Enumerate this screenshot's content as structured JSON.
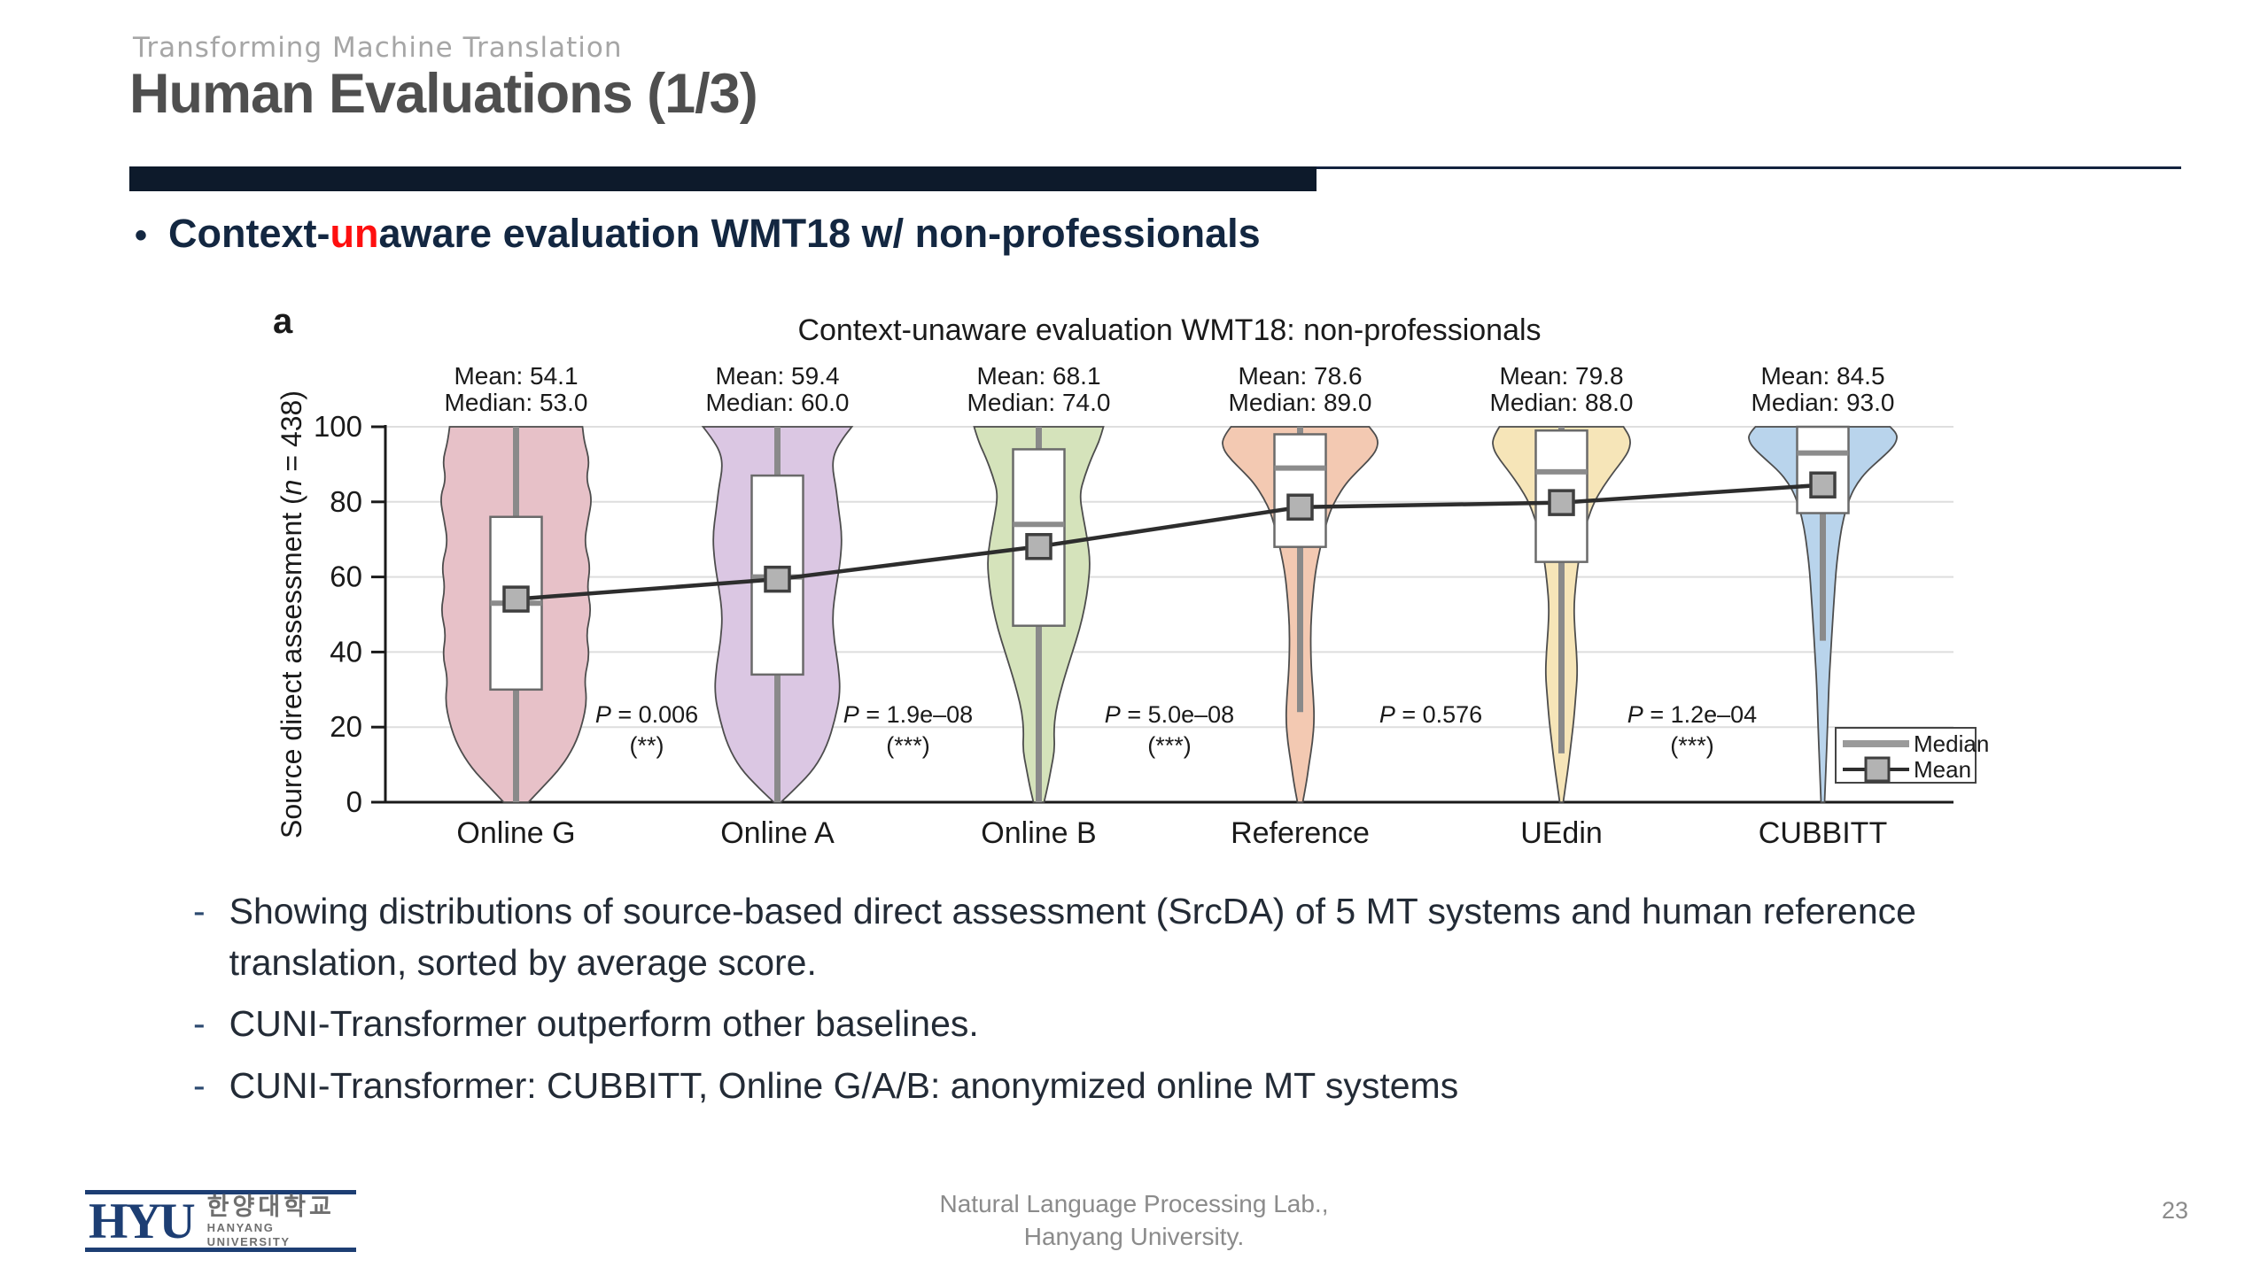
{
  "slide": {
    "kicker": "Transforming Machine Translation",
    "title": "Human Evaluations (1/3)",
    "accent_bar_color": "#0d1a2b",
    "bullet_glyph": "•",
    "dash_glyph": "-",
    "bullet": {
      "prefix": "Context-",
      "highlight": "un",
      "suffix": "aware evaluation WMT18 w/ non-professionals",
      "highlight_color": "#fe0f0f"
    },
    "sub_bullets": [
      "Showing distributions of source-based direct assessment (SrcDA) of 5 MT systems and human reference translation, sorted by average score.",
      "CUNI-Transformer outperform other baselines.",
      "CUNI-Transformer: CUBBITT, Online G/A/B: anonymized online MT systems"
    ],
    "footer": {
      "org_line1": "Natural Language Processing Lab.,",
      "org_line2": "Hanyang University.",
      "page_number": "23"
    },
    "logo": {
      "acronym": "HYU",
      "korean_name": "한양대학교",
      "english_name": "HANYANG UNIVERSITY",
      "color": "#1d3e73"
    }
  },
  "chart_data": {
    "type": "violin",
    "panel_label": "a",
    "title": "Context-unaware evaluation WMT18: non-professionals",
    "ylabel_prefix": "Source direct assessment (",
    "ylabel_italic": "n",
    "ylabel_suffix": " = 438)",
    "ylim": [
      0,
      100
    ],
    "yticks": [
      0,
      20,
      40,
      60,
      80,
      100
    ],
    "grid": true,
    "legend": {
      "median_label": "Median",
      "mean_label": "Mean",
      "position": "bottom-right"
    },
    "categories": [
      "Online G",
      "Online A",
      "Online B",
      "Reference",
      "UEdin",
      "CUBBITT"
    ],
    "series": [
      {
        "name": "Online G",
        "mean": 54.1,
        "median": 53.0,
        "mean_label": "Mean: 54.1",
        "median_label": "Median: 53.0",
        "q1": 30,
        "q3": 76,
        "whisker_low": 0,
        "whisker_high": 100,
        "fill": "#e7c1c8",
        "profile": [
          [
            0,
            14
          ],
          [
            4,
            30
          ],
          [
            9,
            50
          ],
          [
            15,
            66
          ],
          [
            21,
            75
          ],
          [
            27,
            80
          ],
          [
            33,
            77
          ],
          [
            39,
            83
          ],
          [
            45,
            79
          ],
          [
            51,
            85
          ],
          [
            57,
            80
          ],
          [
            63,
            84
          ],
          [
            69,
            77
          ],
          [
            75,
            81
          ],
          [
            81,
            86
          ],
          [
            86,
            79
          ],
          [
            91,
            83
          ],
          [
            96,
            77
          ],
          [
            100,
            75
          ]
        ]
      },
      {
        "name": "Online A",
        "mean": 59.4,
        "median": 60.0,
        "mean_label": "Mean: 59.4",
        "median_label": "Median: 60.0",
        "q1": 34,
        "q3": 87,
        "whisker_low": 0,
        "whisker_high": 100,
        "fill": "#dbc7e3",
        "profile": [
          [
            0,
            4
          ],
          [
            4,
            22
          ],
          [
            9,
            42
          ],
          [
            15,
            56
          ],
          [
            22,
            65
          ],
          [
            29,
            71
          ],
          [
            36,
            69
          ],
          [
            43,
            64
          ],
          [
            50,
            62
          ],
          [
            57,
            66
          ],
          [
            64,
            71
          ],
          [
            71,
            73
          ],
          [
            78,
            69
          ],
          [
            84,
            66
          ],
          [
            89,
            62
          ],
          [
            93,
            64
          ],
          [
            97,
            74
          ],
          [
            100,
            84
          ]
        ]
      },
      {
        "name": "Online B",
        "mean": 68.1,
        "median": 74.0,
        "mean_label": "Mean: 68.1",
        "median_label": "Median: 74.0",
        "q1": 47,
        "q3": 94,
        "whisker_low": 0,
        "whisker_high": 100,
        "fill": "#d5e3bb",
        "profile": [
          [
            0,
            6
          ],
          [
            4,
            10
          ],
          [
            9,
            14
          ],
          [
            14,
            18
          ],
          [
            19,
            17
          ],
          [
            24,
            19
          ],
          [
            29,
            24
          ],
          [
            34,
            30
          ],
          [
            40,
            38
          ],
          [
            46,
            46
          ],
          [
            52,
            52
          ],
          [
            58,
            56
          ],
          [
            64,
            58
          ],
          [
            70,
            55
          ],
          [
            76,
            50
          ],
          [
            82,
            46
          ],
          [
            87,
            52
          ],
          [
            92,
            60
          ],
          [
            96,
            68
          ],
          [
            100,
            73
          ]
        ]
      },
      {
        "name": "Reference",
        "mean": 78.6,
        "median": 89.0,
        "mean_label": "Mean: 78.6",
        "median_label": "Median: 89.0",
        "q1": 68,
        "q3": 98,
        "whisker_low": 24,
        "whisker_high": 100,
        "fill": "#f3c9b2",
        "profile": [
          [
            0,
            3
          ],
          [
            5,
            7
          ],
          [
            10,
            10
          ],
          [
            16,
            14
          ],
          [
            22,
            16
          ],
          [
            28,
            15
          ],
          [
            34,
            13
          ],
          [
            40,
            12
          ],
          [
            47,
            12
          ],
          [
            54,
            14
          ],
          [
            61,
            17
          ],
          [
            67,
            22
          ],
          [
            72,
            27
          ],
          [
            77,
            33
          ],
          [
            81,
            41
          ],
          [
            85,
            52
          ],
          [
            88,
            64
          ],
          [
            91,
            77
          ],
          [
            94,
            87
          ],
          [
            97,
            88
          ],
          [
            100,
            78
          ]
        ]
      },
      {
        "name": "UEdin",
        "mean": 79.8,
        "median": 88.0,
        "mean_label": "Mean: 79.8",
        "median_label": "Median: 88.0",
        "q1": 64,
        "q3": 99,
        "whisker_low": 13,
        "whisker_high": 100,
        "fill": "#f6e5b8",
        "profile": [
          [
            0,
            2
          ],
          [
            5,
            5
          ],
          [
            10,
            8
          ],
          [
            16,
            11
          ],
          [
            22,
            14
          ],
          [
            28,
            16
          ],
          [
            34,
            18
          ],
          [
            40,
            17
          ],
          [
            46,
            15
          ],
          [
            52,
            14
          ],
          [
            58,
            16
          ],
          [
            64,
            19
          ],
          [
            70,
            24
          ],
          [
            75,
            29
          ],
          [
            80,
            37
          ],
          [
            84,
            47
          ],
          [
            88,
            59
          ],
          [
            91,
            69
          ],
          [
            94,
            77
          ],
          [
            97,
            78
          ],
          [
            100,
            70
          ]
        ]
      },
      {
        "name": "CUBBITT",
        "mean": 84.5,
        "median": 93.0,
        "mean_label": "Mean: 84.5",
        "median_label": "Median: 93.0",
        "q1": 77,
        "q3": 100,
        "whisker_low": 43,
        "whisker_high": 100,
        "fill": "#b9d4ec",
        "profile": [
          [
            0,
            2
          ],
          [
            6,
            3
          ],
          [
            12,
            4
          ],
          [
            18,
            5
          ],
          [
            25,
            6
          ],
          [
            32,
            7
          ],
          [
            40,
            9
          ],
          [
            48,
            11
          ],
          [
            55,
            13
          ],
          [
            62,
            15
          ],
          [
            68,
            18
          ],
          [
            73,
            21
          ],
          [
            78,
            26
          ],
          [
            82,
            32
          ],
          [
            85,
            39
          ],
          [
            88,
            49
          ],
          [
            91,
            63
          ],
          [
            94,
            77
          ],
          [
            96,
            83
          ],
          [
            98,
            84
          ],
          [
            100,
            76
          ]
        ]
      }
    ],
    "p_values": [
      {
        "between": [
          "Online G",
          "Online A"
        ],
        "label": "P = 0.006",
        "stars": "(**)"
      },
      {
        "between": [
          "Online A",
          "Online B"
        ],
        "label": "P = 1.9e–08",
        "stars": "(***)"
      },
      {
        "between": [
          "Online B",
          "Reference"
        ],
        "label": "P = 5.0e–08",
        "stars": "(***)"
      },
      {
        "between": [
          "Reference",
          "UEdin"
        ],
        "label": "P = 0.576",
        "stars": ""
      },
      {
        "between": [
          "UEdin",
          "CUBBITT"
        ],
        "label": "P = 1.2e–04",
        "stars": "(***)"
      }
    ]
  }
}
